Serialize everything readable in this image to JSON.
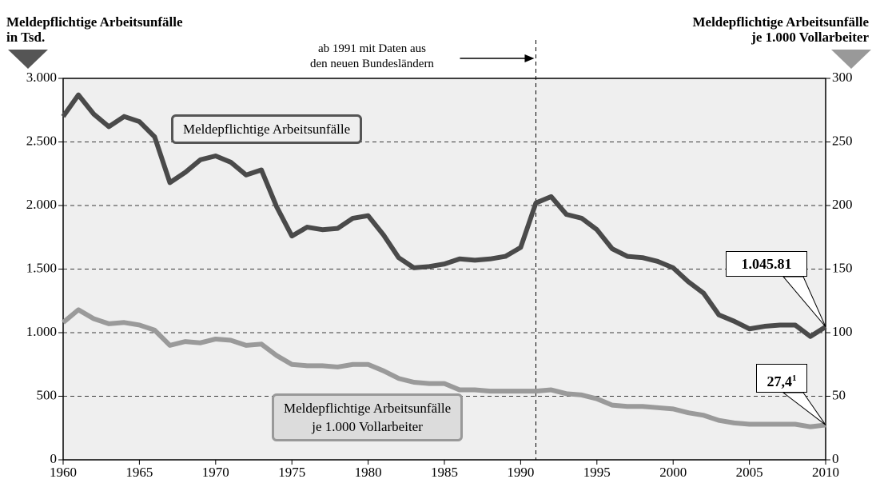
{
  "chart_data": {
    "type": "line",
    "y_axis_title": "Meldepflichtige Arbeitsunfälle\nin Tsd.",
    "y2_axis_title": "Meldepflichtige Arbeitsunfälle\nje 1.000 Vollarbeiter",
    "x": [
      1960,
      1961,
      1962,
      1963,
      1964,
      1965,
      1966,
      1967,
      1968,
      1969,
      1970,
      1971,
      1972,
      1973,
      1974,
      1975,
      1976,
      1977,
      1978,
      1979,
      1980,
      1981,
      1982,
      1983,
      1984,
      1985,
      1986,
      1987,
      1988,
      1989,
      1990,
      1991,
      1992,
      1993,
      1994,
      1995,
      1996,
      1997,
      1998,
      1999,
      2000,
      2001,
      2002,
      2003,
      2004,
      2005,
      2006,
      2007,
      2008,
      2009,
      2010
    ],
    "xlim": [
      1960,
      2010
    ],
    "xticks": [
      1960,
      1965,
      1970,
      1975,
      1980,
      1985,
      1990,
      1995,
      2000,
      2005,
      2010
    ],
    "ylim": [
      0,
      3000
    ],
    "yticks": [
      0,
      {
        "value": 500,
        "label": "500"
      },
      {
        "value": 1000,
        "label": "1.000"
      },
      {
        "value": 1500,
        "label": "1.500"
      },
      {
        "value": 2000,
        "label": "2.000"
      },
      {
        "value": 2500,
        "label": "2.500"
      },
      {
        "value": 3000,
        "label": "3.000"
      }
    ],
    "y2lim": [
      0,
      300
    ],
    "y2ticks": [
      0,
      50,
      100,
      150,
      200,
      250,
      300
    ],
    "grid": true,
    "reference_line": {
      "x": 1991,
      "label": "ab 1991 mit Daten aus\nden neuen Bundesländern"
    },
    "series": [
      {
        "name": "Meldepflichtige Arbeitsunfälle",
        "color": "#4a4a4a",
        "values": [
          2700,
          2870,
          2720,
          2620,
          2700,
          2660,
          2540,
          2180,
          2260,
          2360,
          2390,
          2340,
          2240,
          2280,
          1990,
          1760,
          1830,
          1810,
          1820,
          1900,
          1920,
          1770,
          1590,
          1510,
          1520,
          1540,
          1580,
          1570,
          1580,
          1600,
          1670,
          2020,
          2070,
          1930,
          1900,
          1810,
          1660,
          1600,
          1590,
          1560,
          1510,
          1400,
          1310,
          1140,
          1090,
          1030,
          1050,
          1060,
          1060,
          970,
          1045.81
        ],
        "end_label": "1.045.81"
      },
      {
        "name": "Meldepflichtige Arbeitsunfälle\nje 1.000 Vollarbeiter",
        "color": "#9a9a9a",
        "axis": "y2",
        "values": [
          108,
          118,
          111,
          107,
          108,
          106,
          102,
          90,
          93,
          92,
          95,
          94,
          90,
          91,
          82,
          75,
          74,
          74,
          73,
          75,
          75,
          70,
          64,
          61,
          60,
          60,
          55,
          55,
          54,
          54,
          54,
          54,
          55,
          52,
          51,
          48,
          43,
          42,
          42,
          41,
          40,
          37,
          35,
          31,
          29,
          28,
          28,
          28,
          28,
          26,
          27.4
        ],
        "end_label": "27,4",
        "end_label_footnote": "1"
      }
    ]
  }
}
